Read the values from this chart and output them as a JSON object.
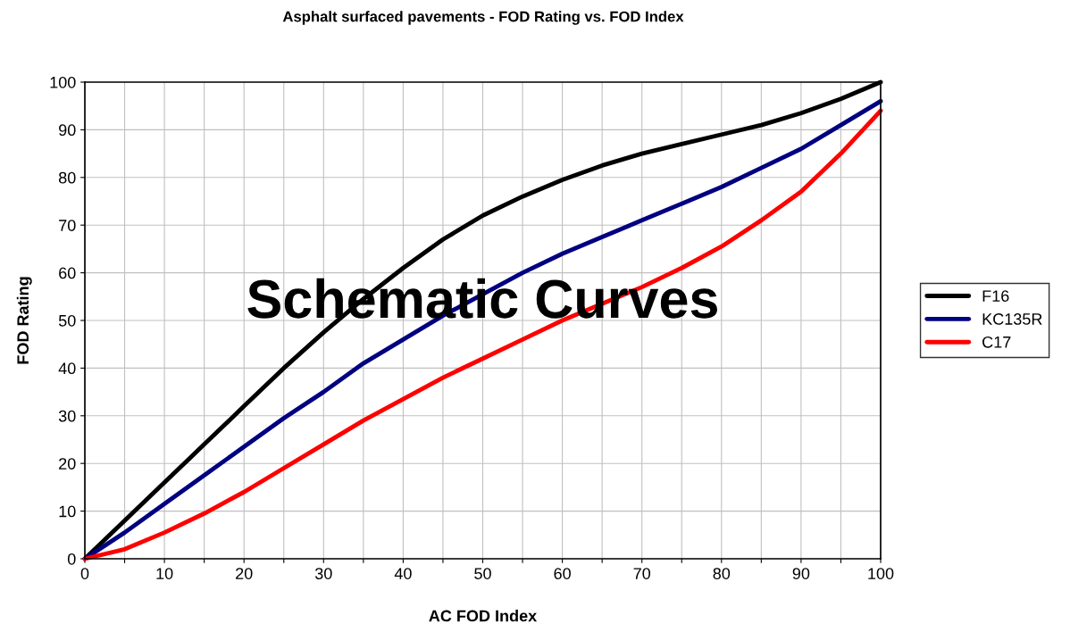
{
  "chart_data": {
    "type": "line",
    "title": "Asphalt surfaced pavements - FOD Rating vs. FOD Index",
    "xlabel": "AC FOD Index",
    "ylabel": "FOD Rating",
    "x": [
      0,
      5,
      10,
      15,
      20,
      25,
      30,
      35,
      40,
      45,
      50,
      55,
      60,
      65,
      70,
      75,
      80,
      85,
      90,
      95,
      100
    ],
    "series": [
      {
        "name": "F16",
        "color": "#000000",
        "values": [
          0,
          8,
          16,
          24,
          32,
          40,
          47.5,
          54.5,
          61,
          67,
          72,
          76,
          79.5,
          82.5,
          85,
          87,
          89,
          91,
          93.5,
          96.5,
          100
        ]
      },
      {
        "name": "KC135R",
        "color": "#000080",
        "values": [
          0,
          5.5,
          11.5,
          17.5,
          23.5,
          29.5,
          35,
          41,
          46,
          51,
          55.5,
          60,
          64,
          67.5,
          71,
          74.5,
          78,
          82,
          86,
          91,
          96
        ]
      },
      {
        "name": "C17",
        "color": "#ff0000",
        "values": [
          0,
          2,
          5.5,
          9.5,
          14,
          19,
          24,
          29,
          33.5,
          38,
          42,
          46,
          50,
          53.5,
          57,
          61,
          65.5,
          71,
          77,
          85,
          94
        ]
      }
    ],
    "annotations": [
      "Schematic Curves"
    ],
    "xlim": [
      0,
      100
    ],
    "ylim": [
      0,
      100
    ],
    "xticks": [
      0,
      {
        "value": 5,
        "label": null
      },
      10,
      {
        "value": 15,
        "label": null
      },
      20,
      {
        "value": 25,
        "label": null
      },
      30,
      {
        "value": 35,
        "label": null
      },
      40,
      {
        "value": 45,
        "label": null
      },
      50,
      {
        "value": 55,
        "label": null
      },
      60,
      {
        "value": 65,
        "label": null
      },
      70,
      {
        "value": 75,
        "label": null
      },
      80,
      {
        "value": 85,
        "label": null
      },
      90,
      {
        "value": 95,
        "label": null
      },
      100
    ],
    "yticks": [
      0,
      10,
      20,
      30,
      40,
      50,
      60,
      70,
      80,
      90,
      100
    ],
    "grid": true,
    "legend": "right",
    "marker": "none",
    "line_style": "solid"
  }
}
